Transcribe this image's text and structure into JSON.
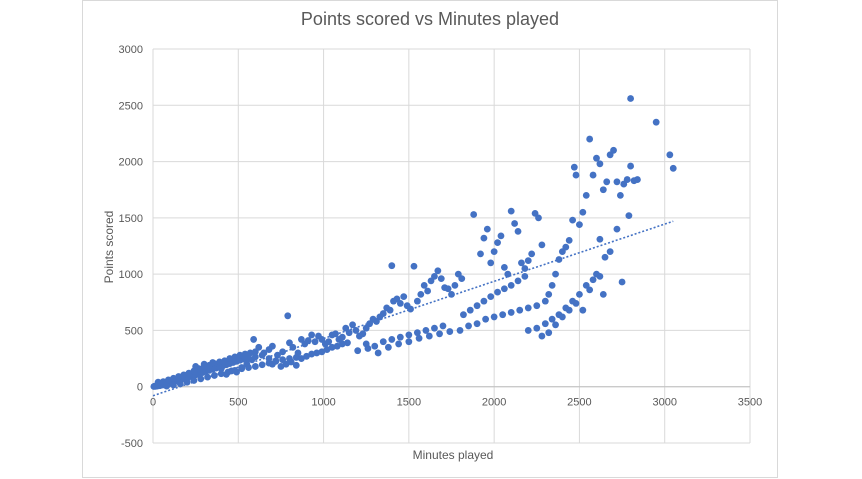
{
  "chart_data": {
    "type": "scatter",
    "title": "Points scored vs Minutes played",
    "xlabel": "Minutes played",
    "ylabel": "Points scored",
    "xlim": [
      0,
      3500
    ],
    "ylim": [
      -500,
      3000
    ],
    "x_ticks": [
      0,
      500,
      1000,
      1500,
      2000,
      2500,
      3000,
      3500
    ],
    "y_ticks": [
      -500,
      0,
      500,
      1000,
      1500,
      2000,
      2500,
      3000
    ],
    "grid": true,
    "legend": "none",
    "colors": {
      "points": "#4472c4",
      "trendline": "#4472c4",
      "grid": "#d9d9d9"
    },
    "trendline": {
      "type": "linear",
      "style": "dotted",
      "x": [
        0,
        3050
      ],
      "y": [
        -80,
        1470
      ]
    },
    "series": [
      {
        "points": [
          [
            5,
            2
          ],
          [
            10,
            5
          ],
          [
            15,
            3
          ],
          [
            20,
            8
          ],
          [
            25,
            6
          ],
          [
            30,
            10
          ],
          [
            35,
            12
          ],
          [
            40,
            9
          ],
          [
            45,
            15
          ],
          [
            50,
            14
          ],
          [
            55,
            18
          ],
          [
            60,
            20
          ],
          [
            65,
            16
          ],
          [
            70,
            24
          ],
          [
            75,
            22
          ],
          [
            80,
            30
          ],
          [
            85,
            26
          ],
          [
            90,
            35
          ],
          [
            95,
            28
          ],
          [
            100,
            40
          ],
          [
            105,
            38
          ],
          [
            110,
            45
          ],
          [
            115,
            42
          ],
          [
            120,
            50
          ],
          [
            125,
            47
          ],
          [
            130,
            55
          ],
          [
            135,
            52
          ],
          [
            140,
            60
          ],
          [
            145,
            58
          ],
          [
            150,
            65
          ],
          [
            155,
            62
          ],
          [
            160,
            70
          ],
          [
            170,
            68
          ],
          [
            180,
            80
          ],
          [
            190,
            75
          ],
          [
            200,
            90
          ],
          [
            210,
            85
          ],
          [
            220,
            100
          ],
          [
            230,
            95
          ],
          [
            240,
            110
          ],
          [
            250,
            105
          ],
          [
            260,
            120
          ],
          [
            270,
            115
          ],
          [
            280,
            130
          ],
          [
            290,
            125
          ],
          [
            300,
            140
          ],
          [
            310,
            135
          ],
          [
            320,
            150
          ],
          [
            330,
            145
          ],
          [
            340,
            160
          ],
          [
            350,
            155
          ],
          [
            360,
            170
          ],
          [
            370,
            165
          ],
          [
            380,
            180
          ],
          [
            390,
            175
          ],
          [
            400,
            190
          ],
          [
            410,
            185
          ],
          [
            420,
            200
          ],
          [
            430,
            195
          ],
          [
            440,
            210
          ],
          [
            450,
            205
          ],
          [
            460,
            220
          ],
          [
            470,
            215
          ],
          [
            480,
            230
          ],
          [
            490,
            225
          ],
          [
            500,
            240
          ],
          [
            510,
            235
          ],
          [
            520,
            250
          ],
          [
            530,
            245
          ],
          [
            540,
            260
          ],
          [
            30,
            40
          ],
          [
            60,
            45
          ],
          [
            90,
            60
          ],
          [
            120,
            75
          ],
          [
            150,
            90
          ],
          [
            180,
            105
          ],
          [
            210,
            120
          ],
          [
            240,
            140
          ],
          [
            270,
            160
          ],
          [
            300,
            175
          ],
          [
            330,
            190
          ],
          [
            360,
            205
          ],
          [
            390,
            220
          ],
          [
            420,
            230
          ],
          [
            450,
            250
          ],
          [
            480,
            265
          ],
          [
            510,
            280
          ],
          [
            540,
            290
          ],
          [
            570,
            300
          ],
          [
            600,
            310
          ],
          [
            80,
            5
          ],
          [
            120,
            15
          ],
          [
            160,
            25
          ],
          [
            200,
            40
          ],
          [
            240,
            55
          ],
          [
            280,
            70
          ],
          [
            320,
            85
          ],
          [
            360,
            100
          ],
          [
            400,
            115
          ],
          [
            440,
            130
          ],
          [
            480,
            145
          ],
          [
            520,
            160
          ],
          [
            560,
            170
          ],
          [
            600,
            180
          ],
          [
            640,
            195
          ],
          [
            680,
            210
          ],
          [
            720,
            225
          ],
          [
            760,
            240
          ],
          [
            800,
            250
          ],
          [
            840,
            260
          ],
          [
            250,
            180
          ],
          [
            300,
            200
          ],
          [
            350,
            215
          ],
          [
            400,
            160
          ],
          [
            430,
            110
          ],
          [
            460,
            140
          ],
          [
            490,
            130
          ],
          [
            520,
            170
          ],
          [
            550,
            200
          ],
          [
            580,
            240
          ],
          [
            590,
            420
          ],
          [
            620,
            350
          ],
          [
            650,
            300
          ],
          [
            680,
            330
          ],
          [
            700,
            360
          ],
          [
            730,
            280
          ],
          [
            760,
            310
          ],
          [
            790,
            630
          ],
          [
            800,
            390
          ],
          [
            820,
            350
          ],
          [
            560,
            250
          ],
          [
            600,
            265
          ],
          [
            640,
            280
          ],
          [
            680,
            250
          ],
          [
            700,
            200
          ],
          [
            720,
            230
          ],
          [
            750,
            180
          ],
          [
            780,
            200
          ],
          [
            810,
            220
          ],
          [
            840,
            190
          ],
          [
            850,
            300
          ],
          [
            870,
            420
          ],
          [
            890,
            380
          ],
          [
            910,
            410
          ],
          [
            930,
            460
          ],
          [
            950,
            400
          ],
          [
            970,
            450
          ],
          [
            990,
            420
          ],
          [
            1010,
            380
          ],
          [
            1030,
            400
          ],
          [
            870,
            250
          ],
          [
            900,
            270
          ],
          [
            930,
            290
          ],
          [
            960,
            300
          ],
          [
            990,
            310
          ],
          [
            1020,
            330
          ],
          [
            1050,
            350
          ],
          [
            1080,
            360
          ],
          [
            1110,
            380
          ],
          [
            1140,
            390
          ],
          [
            1050,
            460
          ],
          [
            1070,
            470
          ],
          [
            1090,
            420
          ],
          [
            1110,
            440
          ],
          [
            1130,
            520
          ],
          [
            1150,
            480
          ],
          [
            1170,
            550
          ],
          [
            1190,
            500
          ],
          [
            1210,
            450
          ],
          [
            1230,
            470
          ],
          [
            1250,
            520
          ],
          [
            1270,
            560
          ],
          [
            1290,
            600
          ],
          [
            1310,
            580
          ],
          [
            1330,
            620
          ],
          [
            1350,
            650
          ],
          [
            1370,
            700
          ],
          [
            1390,
            680
          ],
          [
            1400,
            1075
          ],
          [
            1410,
            760
          ],
          [
            1430,
            780
          ],
          [
            1450,
            740
          ],
          [
            1470,
            800
          ],
          [
            1490,
            720
          ],
          [
            1510,
            690
          ],
          [
            1530,
            1070
          ],
          [
            1550,
            760
          ],
          [
            1570,
            820
          ],
          [
            1590,
            900
          ],
          [
            1610,
            850
          ],
          [
            1630,
            940
          ],
          [
            1650,
            980
          ],
          [
            1670,
            1030
          ],
          [
            1690,
            960
          ],
          [
            1710,
            880
          ],
          [
            1730,
            870
          ],
          [
            1750,
            820
          ],
          [
            1770,
            900
          ],
          [
            1790,
            1000
          ],
          [
            1810,
            960
          ],
          [
            1250,
            380
          ],
          [
            1300,
            360
          ],
          [
            1350,
            400
          ],
          [
            1400,
            420
          ],
          [
            1450,
            440
          ],
          [
            1500,
            460
          ],
          [
            1550,
            480
          ],
          [
            1600,
            500
          ],
          [
            1650,
            520
          ],
          [
            1700,
            540
          ],
          [
            1200,
            320
          ],
          [
            1260,
            340
          ],
          [
            1320,
            300
          ],
          [
            1380,
            350
          ],
          [
            1440,
            380
          ],
          [
            1500,
            400
          ],
          [
            1560,
            430
          ],
          [
            1620,
            450
          ],
          [
            1680,
            470
          ],
          [
            1740,
            490
          ],
          [
            1880,
            1530
          ],
          [
            1920,
            1180
          ],
          [
            1940,
            1320
          ],
          [
            1960,
            1400
          ],
          [
            1980,
            1100
          ],
          [
            2000,
            1200
          ],
          [
            2020,
            1280
          ],
          [
            2040,
            1340
          ],
          [
            2060,
            1060
          ],
          [
            2080,
            1000
          ],
          [
            2100,
            1560
          ],
          [
            2120,
            1450
          ],
          [
            2140,
            1380
          ],
          [
            2160,
            1100
          ],
          [
            2180,
            1050
          ],
          [
            2200,
            1120
          ],
          [
            2220,
            1180
          ],
          [
            2240,
            1540
          ],
          [
            2260,
            1500
          ],
          [
            2280,
            1260
          ],
          [
            1820,
            640
          ],
          [
            1860,
            680
          ],
          [
            1900,
            720
          ],
          [
            1940,
            760
          ],
          [
            1980,
            800
          ],
          [
            2020,
            840
          ],
          [
            2060,
            870
          ],
          [
            2100,
            900
          ],
          [
            2140,
            940
          ],
          [
            2180,
            980
          ],
          [
            1800,
            500
          ],
          [
            1850,
            540
          ],
          [
            1900,
            560
          ],
          [
            1950,
            600
          ],
          [
            2000,
            620
          ],
          [
            2050,
            640
          ],
          [
            2100,
            660
          ],
          [
            2150,
            680
          ],
          [
            2200,
            700
          ],
          [
            2250,
            720
          ],
          [
            2300,
            760
          ],
          [
            2320,
            820
          ],
          [
            2340,
            900
          ],
          [
            2360,
            1000
          ],
          [
            2380,
            1130
          ],
          [
            2400,
            1200
          ],
          [
            2420,
            1240
          ],
          [
            2440,
            1300
          ],
          [
            2460,
            1480
          ],
          [
            2470,
            1950
          ],
          [
            2480,
            1880
          ],
          [
            2500,
            1440
          ],
          [
            2520,
            1550
          ],
          [
            2540,
            1700
          ],
          [
            2560,
            2200
          ],
          [
            2580,
            1880
          ],
          [
            2600,
            2030
          ],
          [
            2620,
            1980
          ],
          [
            2640,
            1750
          ],
          [
            2660,
            1820
          ],
          [
            2680,
            2060
          ],
          [
            2700,
            2100
          ],
          [
            2720,
            1820
          ],
          [
            2740,
            1700
          ],
          [
            2760,
            1800
          ],
          [
            2780,
            1840
          ],
          [
            2800,
            1960
          ],
          [
            2800,
            2560
          ],
          [
            2820,
            1830
          ],
          [
            2840,
            1840
          ],
          [
            2950,
            2350
          ],
          [
            3030,
            2060
          ],
          [
            3050,
            1940
          ],
          [
            2620,
            1310
          ],
          [
            2650,
            1150
          ],
          [
            2680,
            1200
          ],
          [
            2720,
            1400
          ],
          [
            2750,
            930
          ],
          [
            2790,
            1520
          ],
          [
            2640,
            820
          ],
          [
            2300,
            560
          ],
          [
            2340,
            600
          ],
          [
            2380,
            640
          ],
          [
            2420,
            700
          ],
          [
            2460,
            760
          ],
          [
            2500,
            820
          ],
          [
            2540,
            900
          ],
          [
            2580,
            950
          ],
          [
            2600,
            1000
          ],
          [
            2520,
            680
          ],
          [
            2200,
            500
          ],
          [
            2250,
            520
          ],
          [
            2280,
            450
          ],
          [
            2320,
            480
          ],
          [
            2360,
            550
          ],
          [
            2400,
            620
          ],
          [
            2440,
            680
          ],
          [
            2480,
            740
          ],
          [
            2560,
            860
          ],
          [
            2620,
            980
          ]
        ]
      }
    ]
  }
}
